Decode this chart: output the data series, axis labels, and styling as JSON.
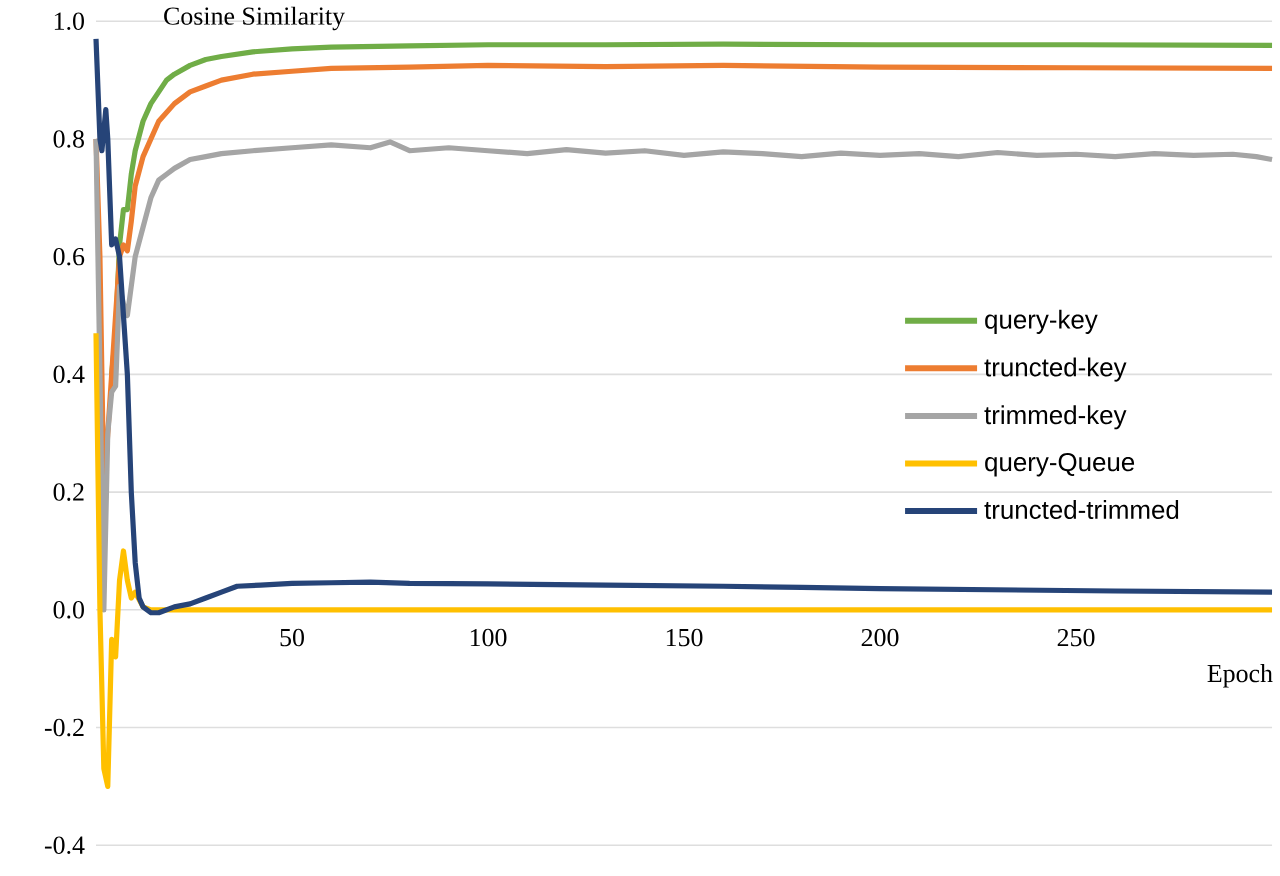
{
  "chart_data": {
    "type": "line",
    "xlabel": "Epoch",
    "ylabel": "Cosine Similarity",
    "xlim": [
      0,
      300
    ],
    "ylim": [
      -0.4,
      1.0
    ],
    "xticks": [
      50,
      100,
      150,
      200,
      250
    ],
    "yticks": [
      {
        "value": -0.4,
        "label": "-0.4"
      },
      {
        "value": -0.2,
        "label": "-0.2"
      },
      {
        "value": 0,
        "label": "0.0"
      },
      {
        "value": 0.2,
        "label": "0.2"
      },
      {
        "value": 0.4,
        "label": "0.4"
      },
      {
        "value": 0.6,
        "label": "0.6"
      },
      {
        "value": 0.8,
        "label": "0.8"
      },
      {
        "value": 1.0,
        "label": "1.0"
      }
    ],
    "grid": "y",
    "legend": "right",
    "marker": "none",
    "line_style": "solid",
    "series": [
      {
        "name": "query-key",
        "color": "#70ad47",
        "x": [
          4,
          5,
          6,
          7,
          8,
          9,
          10,
          12,
          14,
          16,
          18,
          20,
          24,
          28,
          32,
          40,
          50,
          60,
          80,
          100,
          130,
          160,
          200,
          250,
          300
        ],
        "values": [
          0.4,
          0.47,
          0.62,
          0.68,
          0.68,
          0.74,
          0.78,
          0.83,
          0.86,
          0.88,
          0.9,
          0.91,
          0.925,
          0.935,
          0.94,
          0.948,
          0.953,
          0.956,
          0.958,
          0.96,
          0.96,
          0.961,
          0.96,
          0.96,
          0.959
        ]
      },
      {
        "name": "truncted-key",
        "color": "#ed7d31",
        "x": [
          0,
          1,
          2,
          3,
          4,
          5,
          6,
          7,
          8,
          9,
          10,
          12,
          14,
          16,
          20,
          24,
          28,
          32,
          40,
          50,
          60,
          80,
          100,
          130,
          160,
          200,
          250,
          300
        ],
        "values": [
          0.8,
          0.6,
          0.2,
          0.3,
          0.4,
          0.5,
          0.6,
          0.62,
          0.61,
          0.66,
          0.72,
          0.77,
          0.8,
          0.83,
          0.86,
          0.88,
          0.89,
          0.9,
          0.91,
          0.915,
          0.92,
          0.922,
          0.925,
          0.923,
          0.925,
          0.922,
          0.921,
          0.92
        ]
      },
      {
        "name": "trimmed-key",
        "color": "#a5a5a5",
        "x": [
          0,
          1,
          2,
          3,
          4,
          5,
          6,
          7,
          8,
          9,
          10,
          12,
          14,
          16,
          18,
          20,
          24,
          28,
          32,
          40,
          50,
          60,
          70,
          75,
          80,
          90,
          100,
          110,
          120,
          130,
          140,
          150,
          160,
          170,
          180,
          190,
          200,
          210,
          220,
          230,
          240,
          250,
          260,
          270,
          280,
          290,
          296,
          300
        ],
        "values": [
          0.8,
          0.4,
          0.0,
          0.3,
          0.37,
          0.38,
          0.55,
          0.52,
          0.5,
          0.55,
          0.6,
          0.65,
          0.7,
          0.73,
          0.74,
          0.75,
          0.765,
          0.77,
          0.775,
          0.78,
          0.785,
          0.79,
          0.785,
          0.795,
          0.78,
          0.785,
          0.78,
          0.775,
          0.782,
          0.776,
          0.78,
          0.772,
          0.778,
          0.775,
          0.77,
          0.776,
          0.772,
          0.775,
          0.77,
          0.777,
          0.772,
          0.774,
          0.77,
          0.775,
          0.772,
          0.774,
          0.77,
          0.765
        ]
      },
      {
        "name": "query-Queue",
        "color": "#ffc000",
        "x": [
          0,
          1,
          2,
          3,
          4,
          5,
          6,
          7,
          8,
          9,
          10,
          12,
          14,
          20,
          50,
          100,
          200,
          300
        ],
        "values": [
          0.47,
          0.0,
          -0.27,
          -0.3,
          -0.05,
          -0.08,
          0.05,
          0.1,
          0.05,
          0.02,
          0.03,
          0.005,
          0,
          0,
          0,
          0,
          0,
          0
        ]
      },
      {
        "name": "truncted-trimmed",
        "color": "#264478",
        "x": [
          0,
          1,
          1.5,
          2.5,
          3,
          4,
          5,
          6,
          7,
          8,
          9,
          10,
          11,
          12,
          14,
          16,
          20,
          24,
          28,
          32,
          36,
          42,
          50,
          60,
          70,
          80,
          100,
          130,
          160,
          180,
          200,
          230,
          260,
          300
        ],
        "values": [
          0.97,
          0.8,
          0.78,
          0.85,
          0.8,
          0.62,
          0.63,
          0.6,
          0.5,
          0.4,
          0.2,
          0.08,
          0.02,
          0.005,
          -0.005,
          -0.005,
          0.005,
          0.01,
          0.02,
          0.03,
          0.04,
          0.042,
          0.045,
          0.046,
          0.047,
          0.045,
          0.044,
          0.042,
          0.04,
          0.038,
          0.036,
          0.034,
          0.032,
          0.03
        ]
      }
    ]
  }
}
